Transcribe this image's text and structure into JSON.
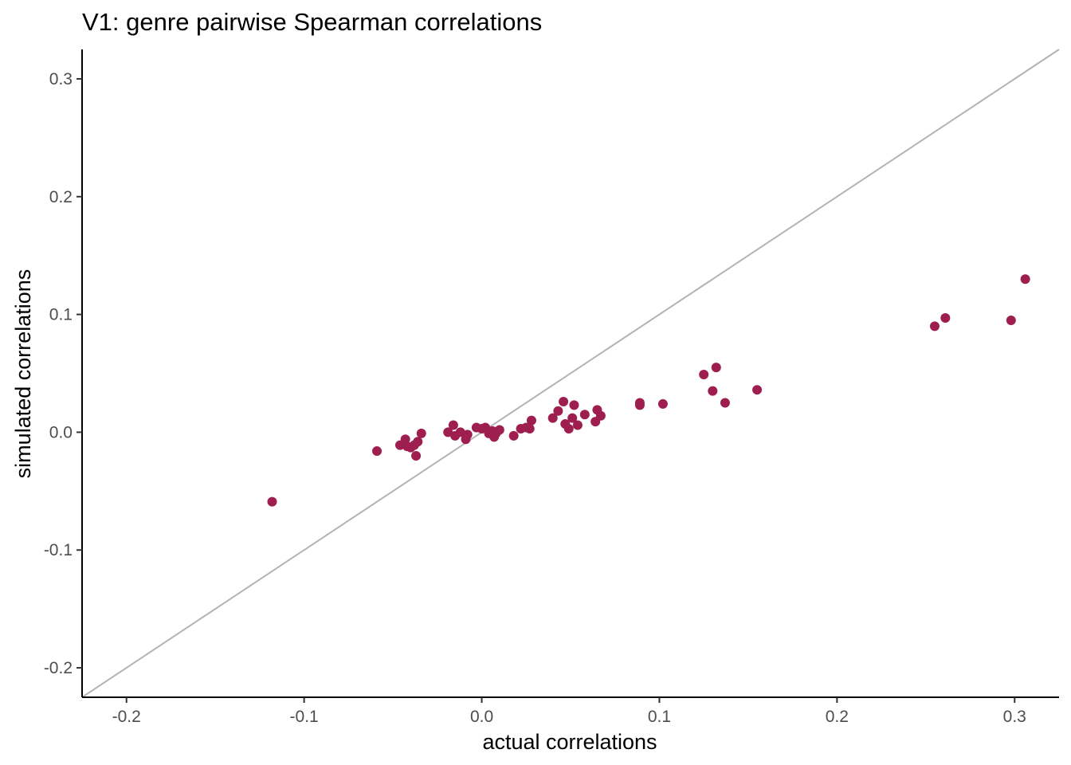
{
  "chart_data": {
    "type": "scatter",
    "title": "V1: genre pairwise Spearman correlations",
    "xlabel": "actual correlations",
    "ylabel": "simulated correlations",
    "xlim": [
      -0.225,
      0.325
    ],
    "ylim": [
      -0.225,
      0.325
    ],
    "x_ticks": [
      -0.2,
      -0.1,
      0.0,
      0.1,
      0.2,
      0.3
    ],
    "x_tick_labels": [
      "-0.2",
      "-0.1",
      "0.0",
      "0.1",
      "0.2",
      "0.3"
    ],
    "y_ticks": [
      -0.2,
      -0.1,
      0.0,
      0.1,
      0.2,
      0.3
    ],
    "y_tick_labels": [
      "-0.2",
      "-0.1",
      "0.0",
      "0.1",
      "0.2",
      "0.3"
    ],
    "grid": false,
    "reference_line": "y = x",
    "point_color": "#9e1f4f",
    "reference_line_color": "#b3b3b3",
    "points": [
      {
        "x": -0.118,
        "y": -0.059
      },
      {
        "x": -0.059,
        "y": -0.016
      },
      {
        "x": -0.046,
        "y": -0.011
      },
      {
        "x": -0.043,
        "y": -0.006
      },
      {
        "x": -0.042,
        "y": -0.012
      },
      {
        "x": -0.04,
        "y": -0.013
      },
      {
        "x": -0.038,
        "y": -0.011
      },
      {
        "x": -0.037,
        "y": -0.02
      },
      {
        "x": -0.036,
        "y": -0.008
      },
      {
        "x": -0.034,
        "y": -0.001
      },
      {
        "x": -0.019,
        "y": 0.0
      },
      {
        "x": -0.016,
        "y": 0.006
      },
      {
        "x": -0.015,
        "y": -0.003
      },
      {
        "x": -0.012,
        "y": 0.0
      },
      {
        "x": -0.009,
        "y": -0.006
      },
      {
        "x": -0.008,
        "y": -0.002
      },
      {
        "x": -0.003,
        "y": 0.004
      },
      {
        "x": 0.0,
        "y": 0.003
      },
      {
        "x": 0.002,
        "y": 0.004
      },
      {
        "x": 0.004,
        "y": -0.001
      },
      {
        "x": 0.006,
        "y": 0.001
      },
      {
        "x": 0.007,
        "y": -0.004
      },
      {
        "x": 0.008,
        "y": -0.001
      },
      {
        "x": 0.01,
        "y": 0.002
      },
      {
        "x": 0.018,
        "y": -0.003
      },
      {
        "x": 0.022,
        "y": 0.003
      },
      {
        "x": 0.025,
        "y": 0.004
      },
      {
        "x": 0.027,
        "y": 0.003
      },
      {
        "x": 0.028,
        "y": 0.01
      },
      {
        "x": 0.04,
        "y": 0.012
      },
      {
        "x": 0.043,
        "y": 0.018
      },
      {
        "x": 0.046,
        "y": 0.026
      },
      {
        "x": 0.047,
        "y": 0.007
      },
      {
        "x": 0.049,
        "y": 0.003
      },
      {
        "x": 0.051,
        "y": 0.012
      },
      {
        "x": 0.052,
        "y": 0.023
      },
      {
        "x": 0.054,
        "y": 0.006
      },
      {
        "x": 0.058,
        "y": 0.015
      },
      {
        "x": 0.064,
        "y": 0.009
      },
      {
        "x": 0.065,
        "y": 0.019
      },
      {
        "x": 0.067,
        "y": 0.014
      },
      {
        "x": 0.089,
        "y": 0.025
      },
      {
        "x": 0.089,
        "y": 0.023
      },
      {
        "x": 0.102,
        "y": 0.024
      },
      {
        "x": 0.125,
        "y": 0.049
      },
      {
        "x": 0.13,
        "y": 0.035
      },
      {
        "x": 0.132,
        "y": 0.055
      },
      {
        "x": 0.137,
        "y": 0.025
      },
      {
        "x": 0.155,
        "y": 0.036
      },
      {
        "x": 0.255,
        "y": 0.09
      },
      {
        "x": 0.261,
        "y": 0.097
      },
      {
        "x": 0.298,
        "y": 0.095
      },
      {
        "x": 0.306,
        "y": 0.13
      }
    ]
  }
}
